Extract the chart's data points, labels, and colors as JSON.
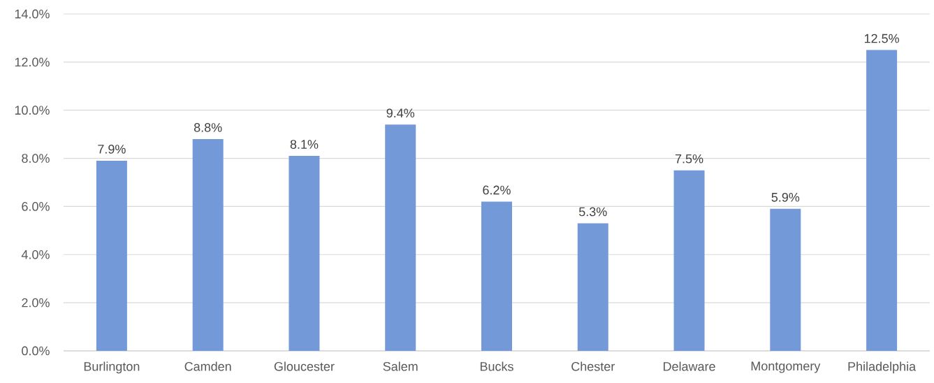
{
  "chart_data": {
    "type": "bar",
    "categories": [
      "Burlington",
      "Camden",
      "Gloucester",
      "Salem",
      "Bucks",
      "Chester",
      "Delaware",
      "Montgomery",
      "Philadelphia"
    ],
    "values": [
      7.9,
      8.8,
      8.1,
      9.4,
      6.2,
      5.3,
      7.5,
      5.9,
      12.5
    ],
    "value_labels": [
      "7.9%",
      "8.8%",
      "8.1%",
      "9.4%",
      "6.2%",
      "5.3%",
      "7.5%",
      "5.9%",
      "12.5%"
    ],
    "color": "#7499d8",
    "ylim": [
      0,
      14
    ],
    "yticks": [
      {
        "value": 0,
        "label": "0.0%"
      },
      {
        "value": 2,
        "label": "2.0%"
      },
      {
        "value": 4,
        "label": "4.0%"
      },
      {
        "value": 6,
        "label": "6.0%"
      },
      {
        "value": 8,
        "label": "8.0%"
      },
      {
        "value": 10,
        "label": "10.0%"
      },
      {
        "value": 12,
        "label": "12.0%"
      },
      {
        "value": 14,
        "label": "14.0%"
      }
    ],
    "grid": "y"
  }
}
